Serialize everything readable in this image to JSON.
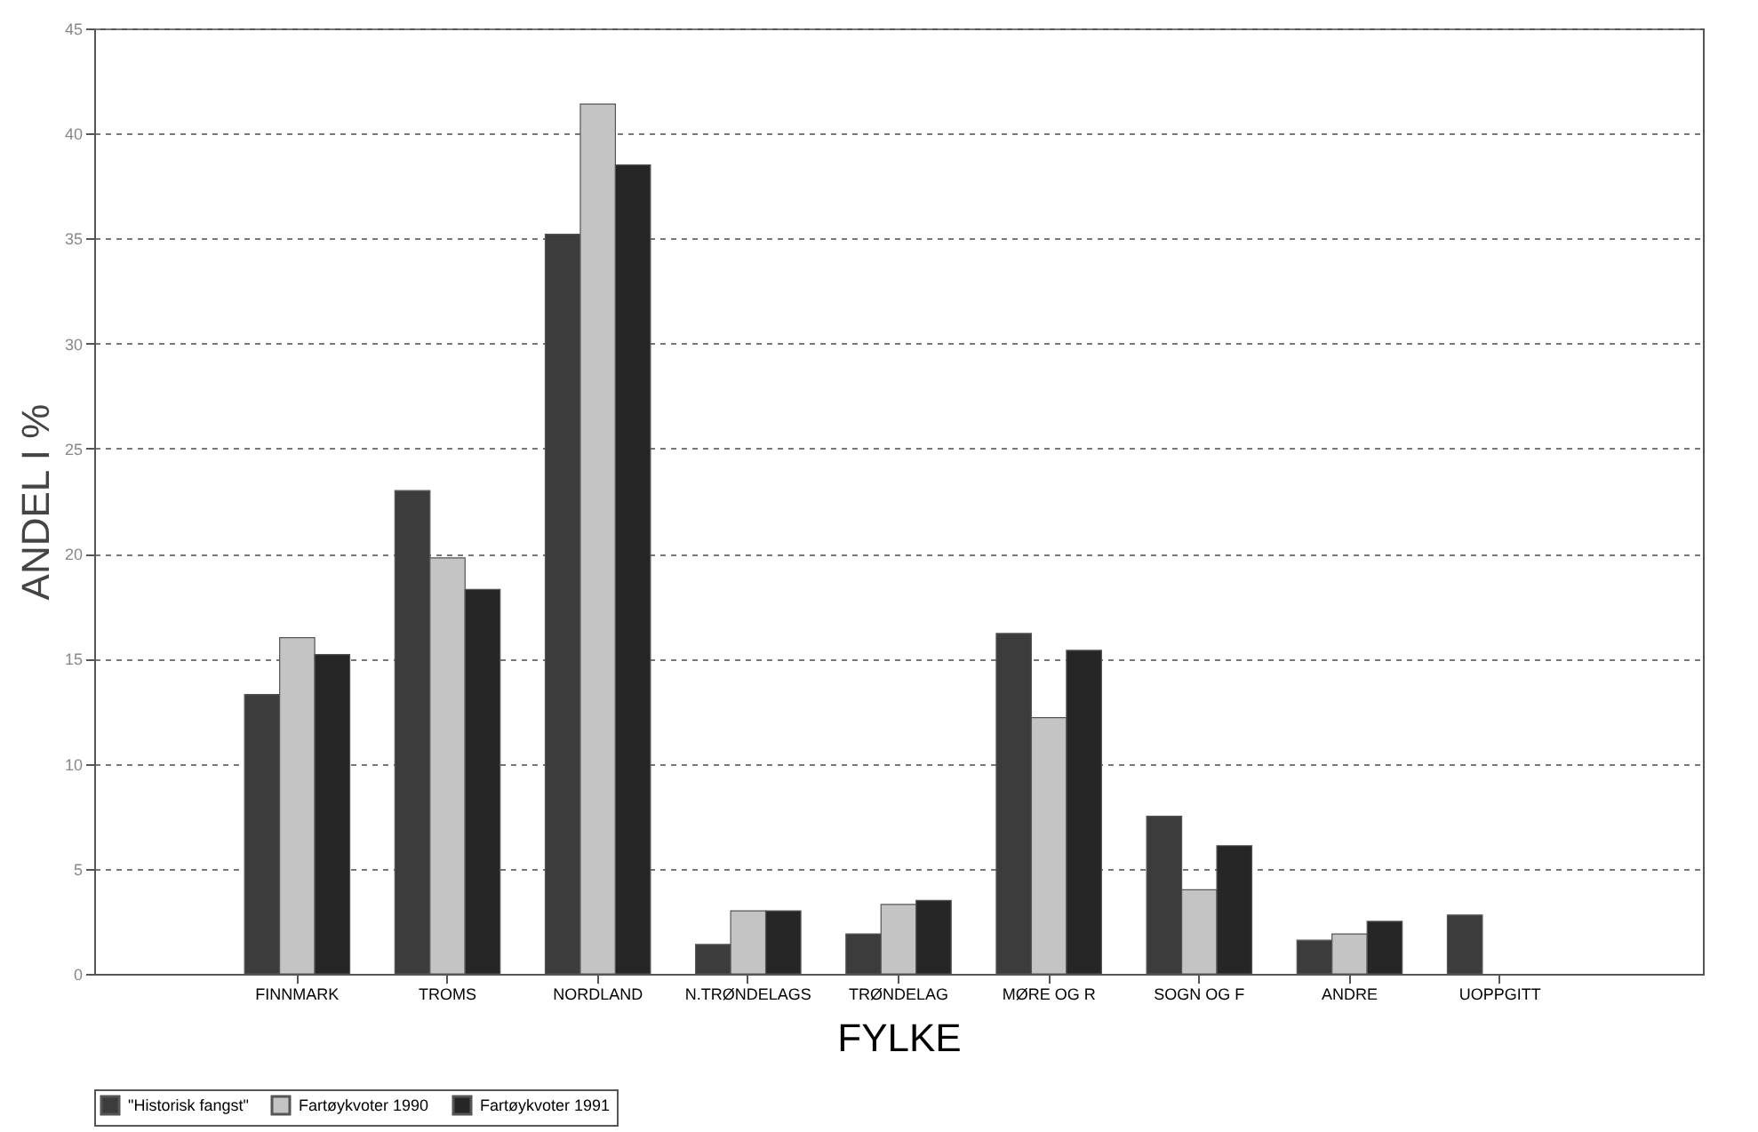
{
  "chart_data": {
    "type": "bar",
    "xlabel": "FYLKE",
    "ylabel": "ANDEL I %",
    "categories": [
      "FINNMARK",
      "TROMS",
      "NORDLAND",
      "N.TRØNDELAGS",
      "TRØNDELAG",
      "MØRE OG R",
      "SOGN OG F",
      "ANDRE",
      "UOPPGITT"
    ],
    "series": [
      {
        "name": "\"Historisk fangst\"",
        "color": "#3c3c3c",
        "values": [
          13.3,
          23.0,
          35.2,
          1.4,
          1.9,
          16.2,
          7.5,
          1.6,
          2.8
        ]
      },
      {
        "name": "Fartøykvoter 1990",
        "color": "#c4c4c4",
        "values": [
          16.0,
          19.8,
          41.4,
          3.0,
          3.3,
          12.2,
          4.0,
          1.9,
          null
        ]
      },
      {
        "name": "Fartøykvoter 1991",
        "color": "#262626",
        "values": [
          15.2,
          18.3,
          38.5,
          3.0,
          3.5,
          15.4,
          6.1,
          2.5,
          null
        ]
      }
    ],
    "ylim": [
      0,
      45
    ],
    "yticks": [
      0,
      5,
      10,
      15,
      20,
      25,
      30,
      35,
      40,
      45
    ],
    "grid": "y",
    "legend": "bottom"
  }
}
